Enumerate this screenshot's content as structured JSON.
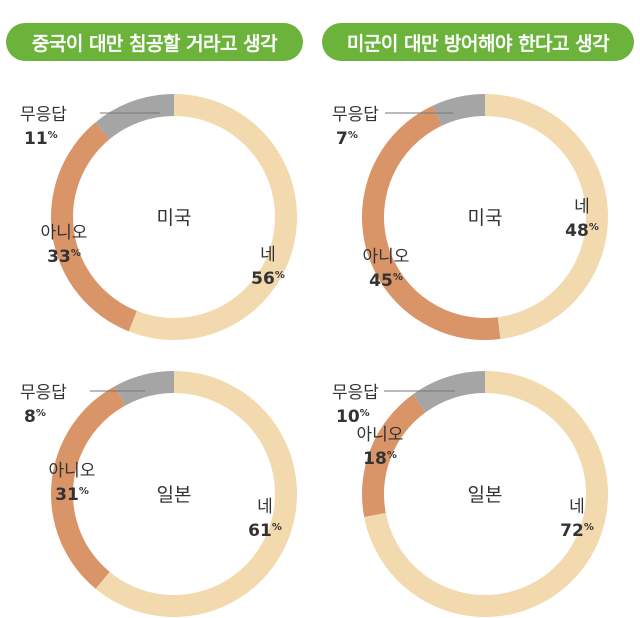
{
  "headers": [
    "중국이 대만 침공할 거라고 생각",
    "미군이 대만 방어해야 한다고 생각"
  ],
  "colors": {
    "header_bg": "#6bb33a",
    "yes": "#f2d9ae",
    "no": "#d99468",
    "no_answer": "#a5a5a5",
    "leader": "#777777"
  },
  "chart_data": [
    {
      "type": "pie",
      "title": "중국이 대만 침공할 거라고 생각",
      "center_label": "미국",
      "slices": [
        {
          "label": "네",
          "value": 56
        },
        {
          "label": "아니오",
          "value": 33
        },
        {
          "label": "무응답",
          "value": 11
        }
      ]
    },
    {
      "type": "pie",
      "title": "미군이 대만 방어해야 한다고 생각",
      "center_label": "미국",
      "slices": [
        {
          "label": "네",
          "value": 48
        },
        {
          "label": "아니오",
          "value": 45
        },
        {
          "label": "무응답",
          "value": 7
        }
      ]
    },
    {
      "type": "pie",
      "title": "중국이 대만 침공할 거라고 생각",
      "center_label": "일본",
      "slices": [
        {
          "label": "네",
          "value": 61
        },
        {
          "label": "아니오",
          "value": 31
        },
        {
          "label": "무응답",
          "value": 8
        }
      ]
    },
    {
      "type": "pie",
      "title": "미군이 대만 방어해야 한다고 생각",
      "center_label": "일본",
      "slices": [
        {
          "label": "네",
          "value": 72
        },
        {
          "label": "아니오",
          "value": 18
        },
        {
          "label": "무응답",
          "value": 10
        }
      ]
    }
  ],
  "percent_sign": "%"
}
